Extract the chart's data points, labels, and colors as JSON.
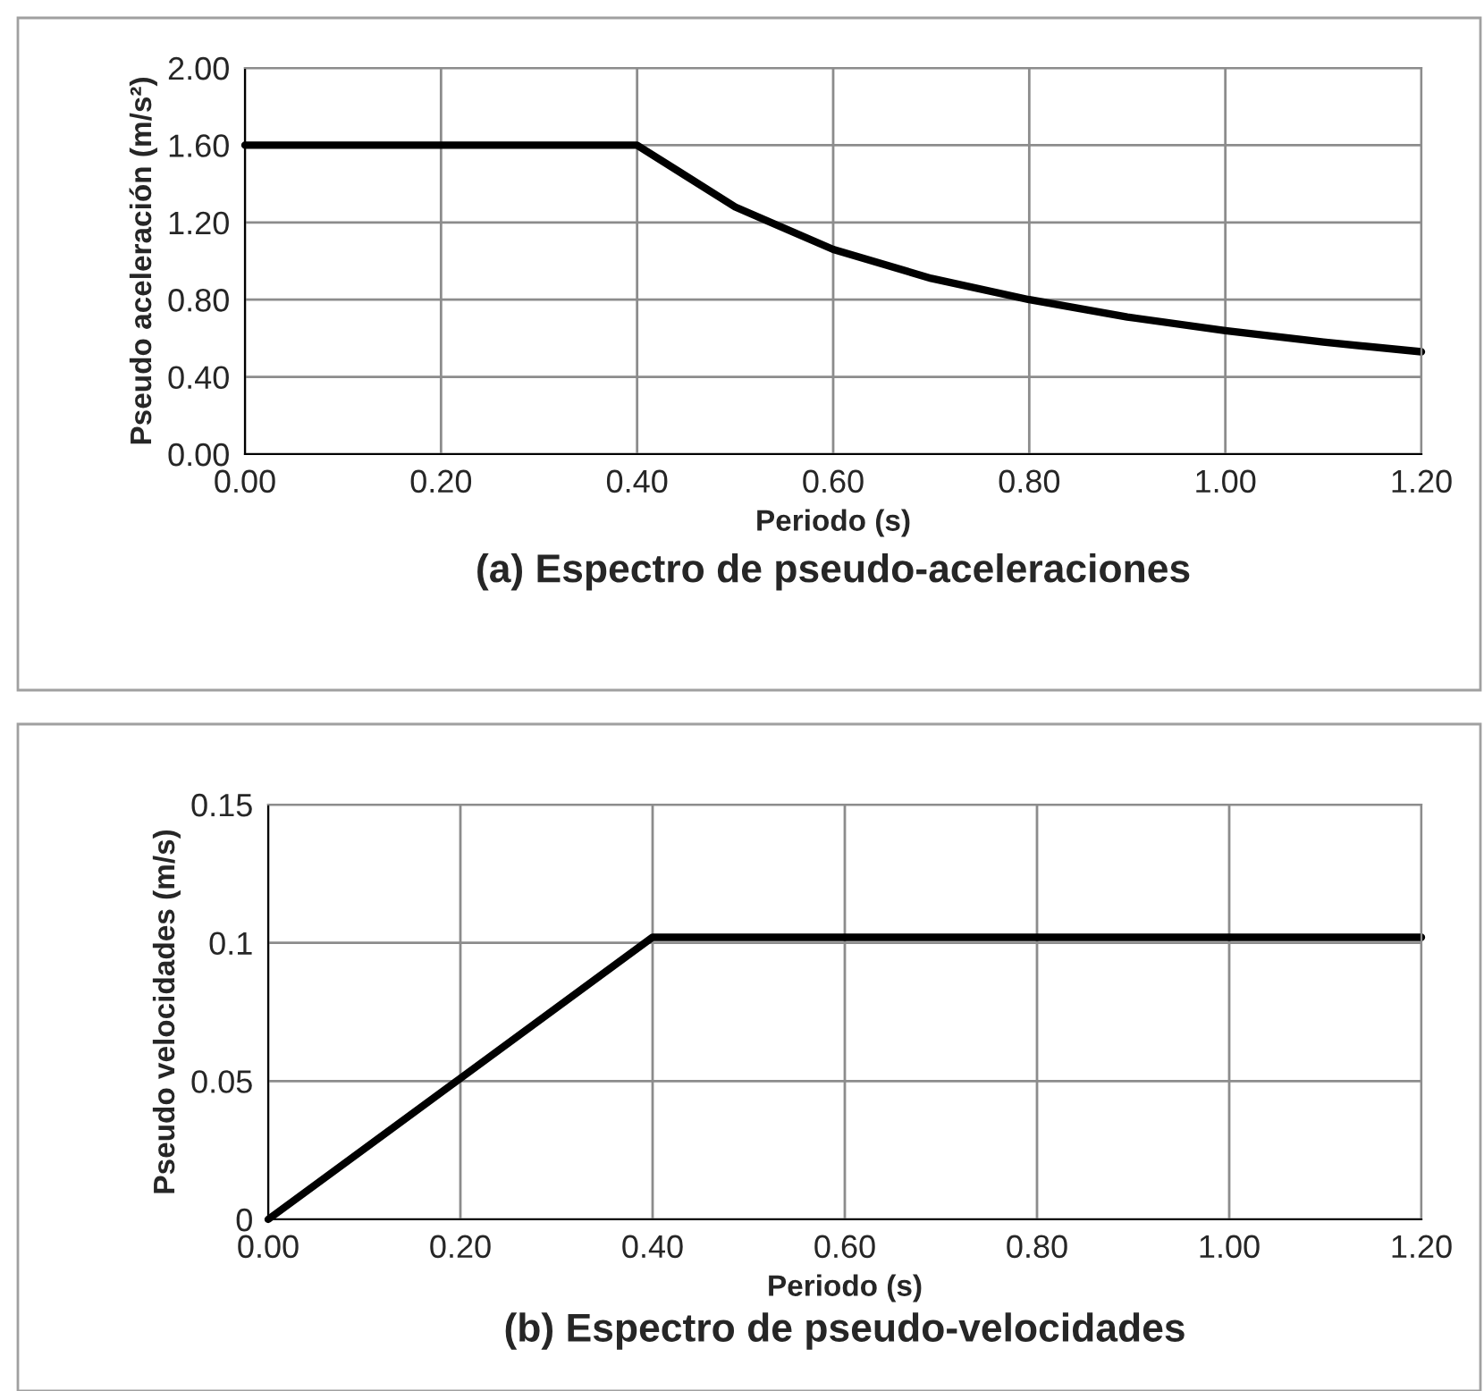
{
  "chart_data": [
    {
      "type": "line",
      "title": "(a) Espectro de pseudo-aceleraciones",
      "xlabel": "Periodo (s)",
      "ylabel": "Pseudo aceleración (m/s²)",
      "x": [
        0.0,
        0.4,
        0.5,
        0.6,
        0.7,
        0.8,
        0.9,
        1.0,
        1.1,
        1.2
      ],
      "series": [
        {
          "color": "#000000",
          "values": [
            1.6,
            1.6,
            1.28,
            1.06,
            0.91,
            0.8,
            0.71,
            0.64,
            0.58,
            0.53
          ]
        }
      ],
      "xlim": [
        0,
        1.2
      ],
      "xticks": [
        {
          "value": 0,
          "label": "0.00"
        },
        {
          "value": 0.2,
          "label": "0.20"
        },
        {
          "value": 0.4,
          "label": "0.40"
        },
        {
          "value": 0.6,
          "label": "0.60"
        },
        {
          "value": 0.8,
          "label": "0.80"
        },
        {
          "value": 1.0,
          "label": "1.00"
        },
        {
          "value": 1.2,
          "label": "1.20"
        }
      ],
      "ylim": [
        0,
        2
      ],
      "yticks": [
        {
          "value": 0,
          "label": "0.00"
        },
        {
          "value": 0.4,
          "label": "0.40"
        },
        {
          "value": 0.8,
          "label": "0.80"
        },
        {
          "value": 1.2,
          "label": "1.20"
        },
        {
          "value": 1.6,
          "label": "1.60"
        },
        {
          "value": 2,
          "label": "2.00"
        }
      ],
      "grid": true,
      "legend": false
    },
    {
      "type": "line",
      "title": "(b) Espectro de pseudo-velocidades",
      "xlabel": "Periodo (s)",
      "ylabel": "Pseudo velocidades (m/s)",
      "x": [
        0.0,
        0.4,
        1.2
      ],
      "series": [
        {
          "color": "#000000",
          "values": [
            0.0,
            0.102,
            0.102
          ]
        }
      ],
      "xlim": [
        0,
        1.2
      ],
      "xticks": [
        {
          "value": 0,
          "label": "0.00"
        },
        {
          "value": 0.2,
          "label": "0.20"
        },
        {
          "value": 0.4,
          "label": "0.40"
        },
        {
          "value": 0.6,
          "label": "0.60"
        },
        {
          "value": 0.8,
          "label": "0.80"
        },
        {
          "value": 1.0,
          "label": "1.00"
        },
        {
          "value": 1.2,
          "label": "1.20"
        }
      ],
      "ylim": [
        0,
        0.15
      ],
      "yticks": [
        0,
        0.05,
        0.1,
        0.15
      ],
      "grid": true,
      "legend": false
    }
  ]
}
